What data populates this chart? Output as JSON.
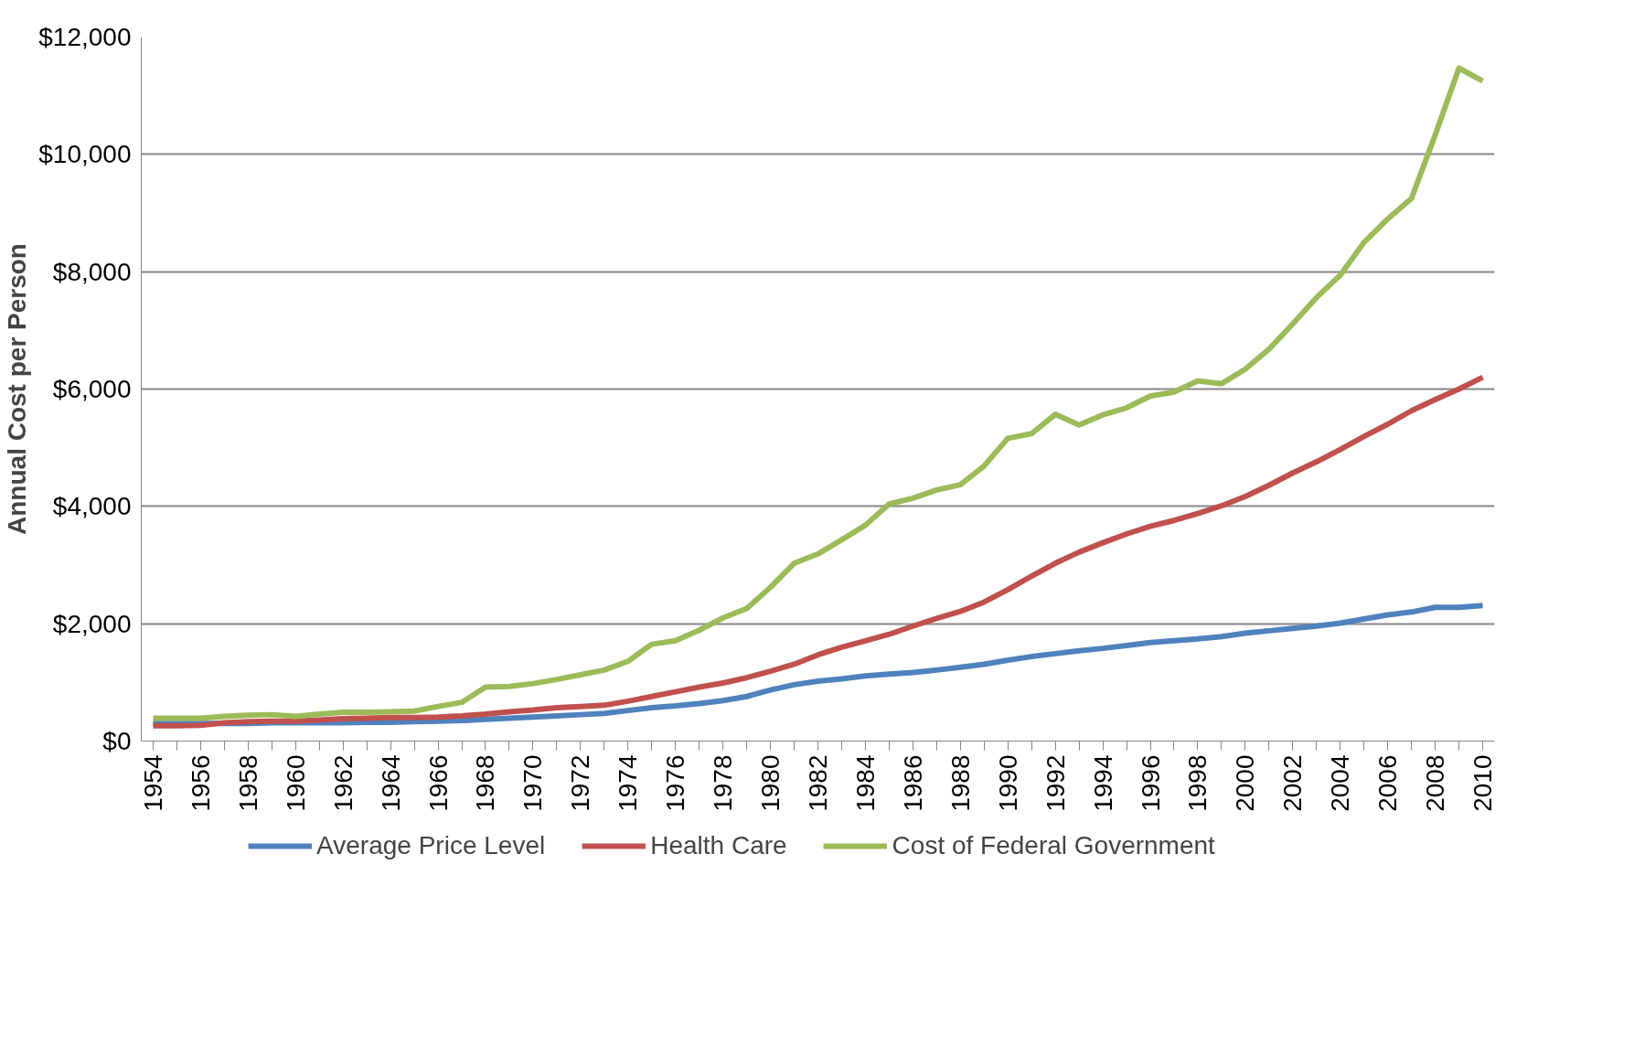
{
  "chart_data": {
    "type": "line",
    "ylabel": "Annual Cost per Person",
    "x": [
      1954,
      1955,
      1956,
      1957,
      1958,
      1959,
      1960,
      1961,
      1962,
      1963,
      1964,
      1965,
      1966,
      1967,
      1968,
      1969,
      1970,
      1971,
      1972,
      1973,
      1974,
      1975,
      1976,
      1977,
      1978,
      1979,
      1980,
      1981,
      1982,
      1983,
      1984,
      1985,
      1986,
      1987,
      1988,
      1989,
      1990,
      1991,
      1992,
      1993,
      1994,
      1995,
      1996,
      1997,
      1998,
      1999,
      2000,
      2001,
      2002,
      2003,
      2004,
      2005,
      2006,
      2007,
      2008,
      2009,
      2010
    ],
    "series": [
      {
        "name": "Average Price Level",
        "color": "#4f81bd",
        "values": [
          300,
          300,
          300,
          300,
          300,
          310,
          310,
          310,
          310,
          320,
          320,
          330,
          340,
          350,
          370,
          390,
          410,
          430,
          450,
          470,
          520,
          570,
          600,
          640,
          690,
          760,
          870,
          960,
          1020,
          1060,
          1110,
          1140,
          1170,
          1210,
          1260,
          1310,
          1380,
          1440,
          1490,
          1540,
          1580,
          1630,
          1680,
          1710,
          1740,
          1780,
          1840,
          1880,
          1920,
          1960,
          2010,
          2080,
          2150,
          2200,
          2280,
          2280,
          2310
        ]
      },
      {
        "name": "Health Care",
        "color": "#c0504d",
        "values": [
          260,
          260,
          270,
          310,
          330,
          340,
          340,
          360,
          380,
          390,
          400,
          400,
          410,
          430,
          460,
          500,
          530,
          570,
          590,
          610,
          680,
          760,
          840,
          920,
          990,
          1080,
          1190,
          1310,
          1470,
          1600,
          1710,
          1820,
          1960,
          2090,
          2210,
          2370,
          2580,
          2810,
          3030,
          3220,
          3380,
          3530,
          3660,
          3760,
          3880,
          4010,
          4170,
          4360,
          4570,
          4760,
          4970,
          5190,
          5400,
          5630,
          5820,
          6000,
          6200
        ]
      },
      {
        "name": "Cost of Federal Government",
        "color": "#9bbb59",
        "values": [
          390,
          390,
          390,
          420,
          440,
          450,
          420,
          460,
          490,
          490,
          500,
          510,
          590,
          660,
          920,
          930,
          980,
          1050,
          1130,
          1210,
          1360,
          1650,
          1710,
          1890,
          2100,
          2260,
          2620,
          3030,
          3190,
          3430,
          3680,
          4040,
          4140,
          4280,
          4370,
          4690,
          5160,
          5240,
          5570,
          5390,
          5560,
          5680,
          5880,
          5950,
          6140,
          6090,
          6340,
          6680,
          7110,
          7560,
          7940,
          8500,
          8900,
          9250,
          10330,
          11470,
          11250
        ]
      }
    ],
    "xlim": [
      1953.5,
      2010.5
    ],
    "xticks": [
      1954,
      {
        "value": 1955,
        "label": null
      },
      1956,
      {
        "value": 1957,
        "label": null
      },
      1958,
      {
        "value": 1959,
        "label": null
      },
      1960,
      {
        "value": 1961,
        "label": null
      },
      1962,
      {
        "value": 1963,
        "label": null
      },
      1964,
      {
        "value": 1965,
        "label": null
      },
      1966,
      {
        "value": 1967,
        "label": null
      },
      1968,
      {
        "value": 1969,
        "label": null
      },
      1970,
      {
        "value": 1971,
        "label": null
      },
      1972,
      {
        "value": 1973,
        "label": null
      },
      1974,
      {
        "value": 1975,
        "label": null
      },
      1976,
      {
        "value": 1977,
        "label": null
      },
      1978,
      {
        "value": 1979,
        "label": null
      },
      1980,
      {
        "value": 1981,
        "label": null
      },
      1982,
      {
        "value": 1983,
        "label": null
      },
      1984,
      {
        "value": 1985,
        "label": null
      },
      1986,
      {
        "value": 1987,
        "label": null
      },
      1988,
      {
        "value": 1989,
        "label": null
      },
      1990,
      {
        "value": 1991,
        "label": null
      },
      1992,
      {
        "value": 1993,
        "label": null
      },
      1994,
      {
        "value": 1995,
        "label": null
      },
      1996,
      {
        "value": 1997,
        "label": null
      },
      1998,
      {
        "value": 1999,
        "label": null
      },
      2000,
      {
        "value": 2001,
        "label": null
      },
      2002,
      {
        "value": 2003,
        "label": null
      },
      2004,
      {
        "value": 2005,
        "label": null
      },
      2006,
      {
        "value": 2007,
        "label": null
      },
      2008,
      {
        "value": 2009,
        "label": null
      },
      2010
    ],
    "ylim": [
      0,
      12000
    ],
    "yticks": [
      {
        "value": 0,
        "label": "$0"
      },
      {
        "value": 2000,
        "label": "$2,000"
      },
      {
        "value": 4000,
        "label": "$4,000"
      },
      {
        "value": 6000,
        "label": "$6,000"
      },
      {
        "value": 8000,
        "label": "$8,000"
      },
      {
        "value": 10000,
        "label": "$10,000"
      },
      {
        "value": 12000,
        "label": "$12,000"
      }
    ],
    "grid": "y",
    "legend": "bottom",
    "marker": "none",
    "line_style": "solid"
  }
}
